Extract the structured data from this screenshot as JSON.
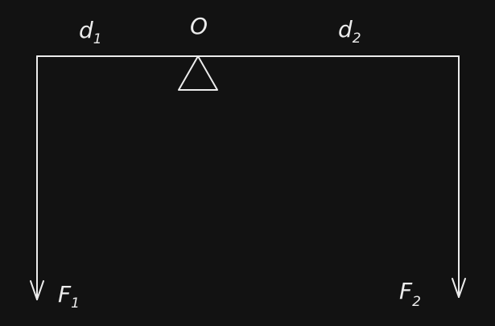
{
  "diagram": {
    "labels": {
      "d1": {
        "main": "d",
        "sub": "1"
      },
      "pivot": "O",
      "d2": {
        "main": "d",
        "sub": "2"
      },
      "f1": {
        "main": "F",
        "sub": "1"
      },
      "f2": {
        "main": "F",
        "sub": "2"
      }
    },
    "colors": {
      "background": "#121212",
      "stroke": "#ececec"
    }
  }
}
